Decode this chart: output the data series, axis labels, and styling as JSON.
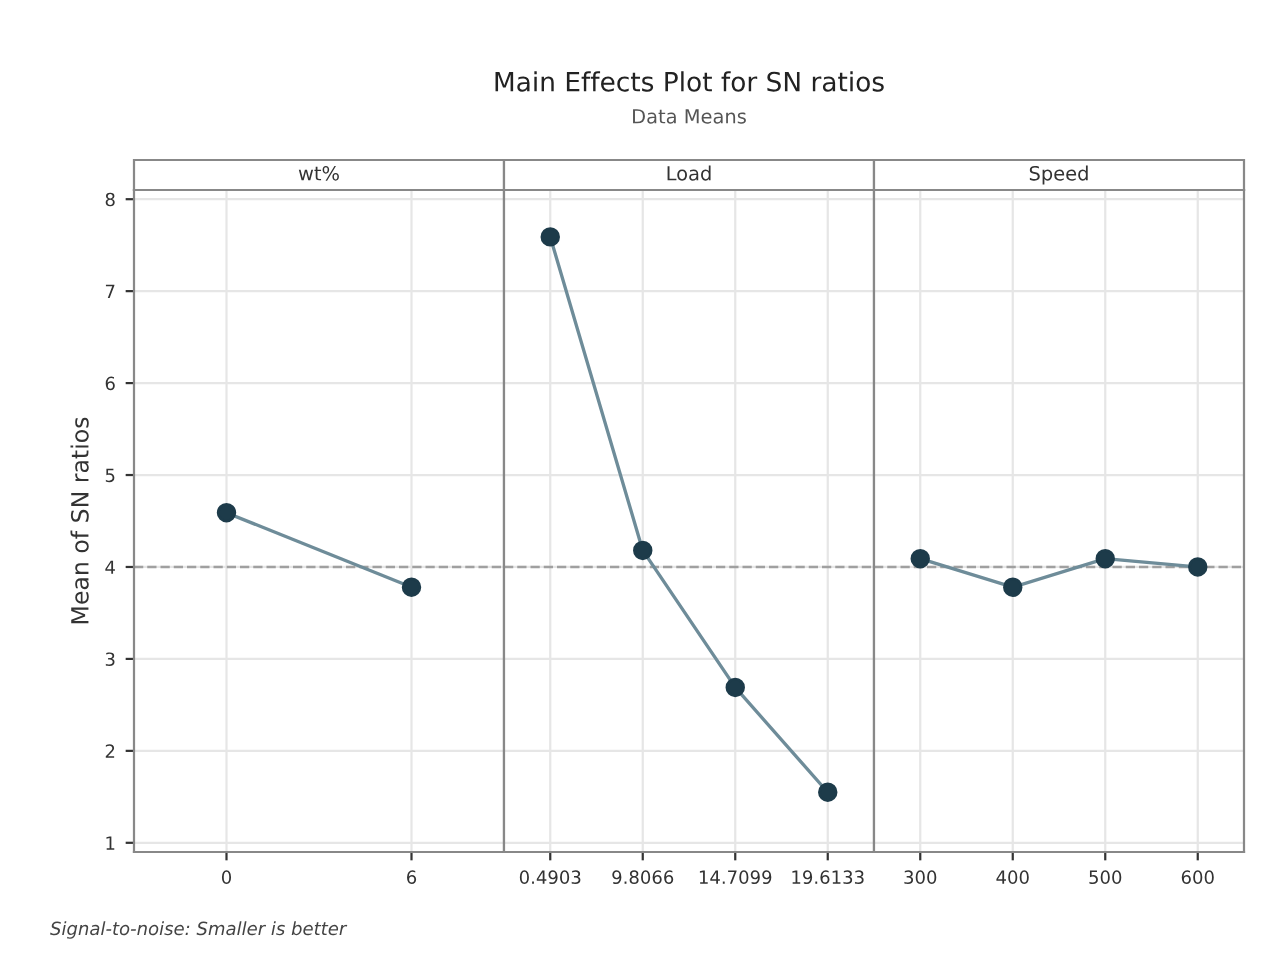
{
  "chart_data": [
    {
      "type": "line",
      "title": "wt%",
      "ylabel": "Mean of SN ratios",
      "categories": [
        "0",
        "6"
      ],
      "series": [
        {
          "color": "#1d3b4a",
          "values": [
            4.59,
            3.78
          ]
        }
      ],
      "ylim": [
        0.9,
        8.1
      ],
      "yticks": [
        1,
        2,
        3,
        4,
        5,
        6,
        7,
        8
      ],
      "grid": true,
      "marker": "circle",
      "line_style": "solid",
      "ref_lines": [
        {
          "axis": "y",
          "value": 4.0,
          "color": "#a0a0a0",
          "line_style": "dashed"
        }
      ],
      "annotations": [
        "Main Effects Plot for SN ratios",
        "Data Means",
        "Signal-to-noise: Smaller is better"
      ]
    },
    {
      "type": "line",
      "title": "Load",
      "categories": [
        "0.4903",
        "9.8066",
        "14.7099",
        "19.6133"
      ],
      "series": [
        {
          "color": "#1d3b4a",
          "values": [
            7.59,
            4.18,
            2.69,
            1.55
          ]
        }
      ],
      "ylim": [
        0.9,
        8.1
      ],
      "yticks": [
        1,
        2,
        3,
        4,
        5,
        6,
        7,
        8
      ],
      "tick_labels": "x",
      "grid": true,
      "marker": "circle",
      "line_style": "solid",
      "ref_lines": [
        {
          "axis": "y",
          "value": 4.0,
          "color": "#a0a0a0",
          "line_style": "dashed"
        }
      ]
    },
    {
      "type": "line",
      "title": "Speed",
      "categories": [
        "300",
        "400",
        "500",
        "600"
      ],
      "series": [
        {
          "color": "#1d3b4a",
          "values": [
            4.09,
            3.78,
            4.09,
            4.0
          ]
        }
      ],
      "ylim": [
        0.9,
        8.1
      ],
      "yticks": [
        1,
        2,
        3,
        4,
        5,
        6,
        7,
        8
      ],
      "tick_labels": "x",
      "grid": true,
      "marker": "circle",
      "line_style": "solid",
      "ref_lines": [
        {
          "axis": "y",
          "value": 4.0,
          "color": "#a0a0a0",
          "line_style": "dashed"
        }
      ]
    }
  ]
}
